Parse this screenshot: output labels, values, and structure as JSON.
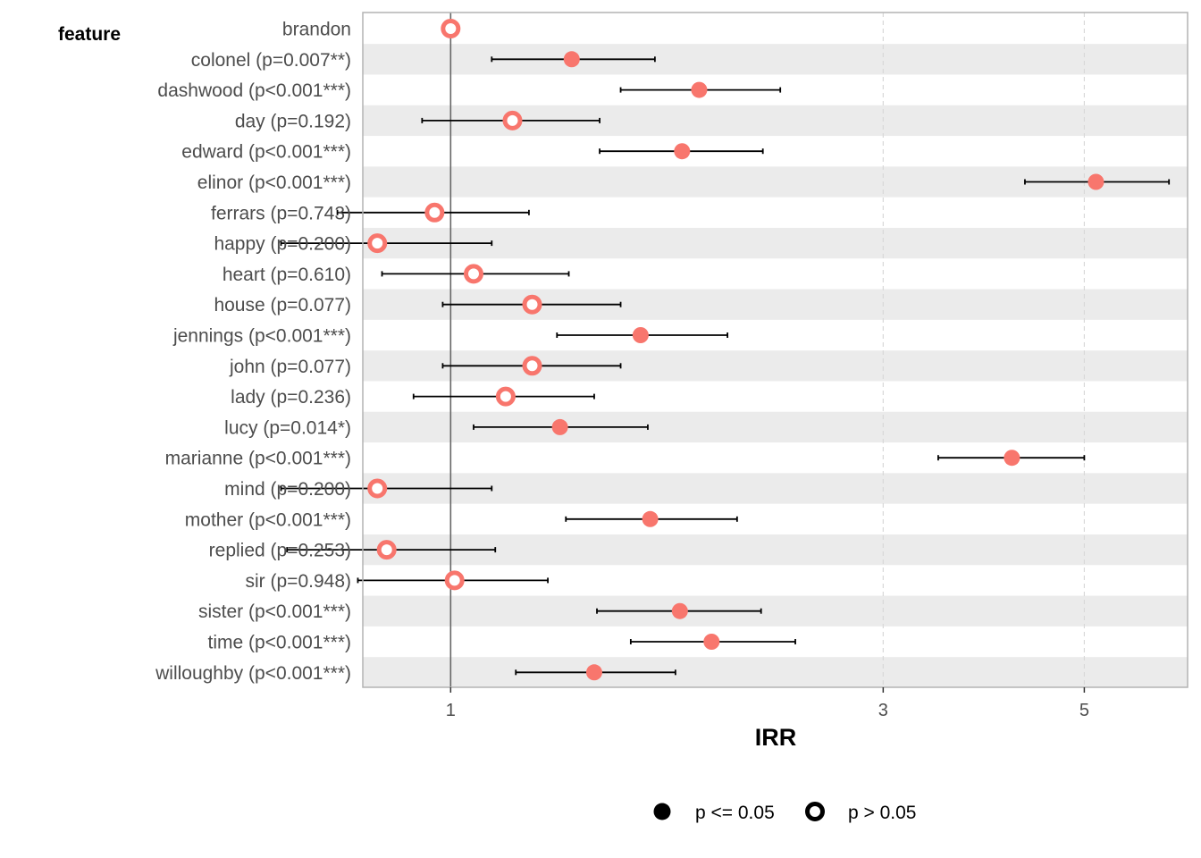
{
  "chart_data": {
    "type": "forest",
    "ylabel": "feature",
    "xlabel": "IRR",
    "x_scale": "log",
    "xlim": [
      0.8,
      6.5
    ],
    "x_ticks": [
      1,
      3,
      5
    ],
    "x_tick_labels": [
      "1",
      "3",
      "5"
    ],
    "reference_line": 1,
    "colors": {
      "point": "#f8766d",
      "bar": "#000000",
      "band": "#ebebeb",
      "refline": "#666666"
    },
    "legend": {
      "position": "bottom",
      "items": [
        {
          "label": "p <= 0.05",
          "shape": "filled-circle"
        },
        {
          "label": "p > 0.05",
          "shape": "open-circle"
        }
      ]
    },
    "rows": [
      {
        "label": "brandon",
        "irr": 1.0,
        "lo": 1.0,
        "hi": 1.0,
        "significant": false
      },
      {
        "label": "colonel (p=0.007**)",
        "irr": 1.36,
        "lo": 1.11,
        "hi": 1.68,
        "significant": true
      },
      {
        "label": "dashwood (p<0.001***)",
        "irr": 1.88,
        "lo": 1.54,
        "hi": 2.31,
        "significant": true
      },
      {
        "label": "day (p=0.192)",
        "irr": 1.17,
        "lo": 0.93,
        "hi": 1.46,
        "significant": false
      },
      {
        "label": "edward (p<0.001***)",
        "irr": 1.8,
        "lo": 1.46,
        "hi": 2.21,
        "significant": true
      },
      {
        "label": "elinor (p<0.001***)",
        "irr": 5.15,
        "lo": 4.3,
        "hi": 6.2,
        "significant": true
      },
      {
        "label": "ferrars (p=0.743)",
        "irr": 0.96,
        "lo": 0.75,
        "hi": 1.22,
        "significant": false
      },
      {
        "label": "happy (p=0.200)",
        "irr": 0.83,
        "lo": 0.65,
        "hi": 1.11,
        "significant": false
      },
      {
        "label": "heart (p=0.610)",
        "irr": 1.06,
        "lo": 0.84,
        "hi": 1.35,
        "significant": false
      },
      {
        "label": "house (p=0.077)",
        "irr": 1.23,
        "lo": 0.98,
        "hi": 1.54,
        "significant": false
      },
      {
        "label": "jennings (p<0.001***)",
        "irr": 1.62,
        "lo": 1.31,
        "hi": 2.02,
        "significant": true
      },
      {
        "label": "john (p=0.077)",
        "irr": 1.23,
        "lo": 0.98,
        "hi": 1.54,
        "significant": false
      },
      {
        "label": "lady (p=0.236)",
        "irr": 1.15,
        "lo": 0.91,
        "hi": 1.44,
        "significant": false
      },
      {
        "label": "lucy (p=0.014*)",
        "irr": 1.32,
        "lo": 1.06,
        "hi": 1.65,
        "significant": true
      },
      {
        "label": "marianne (p<0.001***)",
        "irr": 4.16,
        "lo": 3.45,
        "hi": 5.0,
        "significant": true
      },
      {
        "label": "mind (p=0.200)",
        "irr": 0.83,
        "lo": 0.65,
        "hi": 1.11,
        "significant": false
      },
      {
        "label": "mother (p<0.001***)",
        "irr": 1.66,
        "lo": 1.34,
        "hi": 2.07,
        "significant": true
      },
      {
        "label": "replied (p=0.253)",
        "irr": 0.85,
        "lo": 0.66,
        "hi": 1.12,
        "significant": false
      },
      {
        "label": "sir (p=0.948)",
        "irr": 1.01,
        "lo": 0.79,
        "hi": 1.28,
        "significant": false
      },
      {
        "label": "sister (p<0.001***)",
        "irr": 1.79,
        "lo": 1.45,
        "hi": 2.2,
        "significant": true
      },
      {
        "label": "time (p<0.001***)",
        "irr": 1.94,
        "lo": 1.58,
        "hi": 2.4,
        "significant": true
      },
      {
        "label": "willoughby (p<0.001***)",
        "irr": 1.44,
        "lo": 1.18,
        "hi": 1.77,
        "significant": true
      }
    ]
  }
}
